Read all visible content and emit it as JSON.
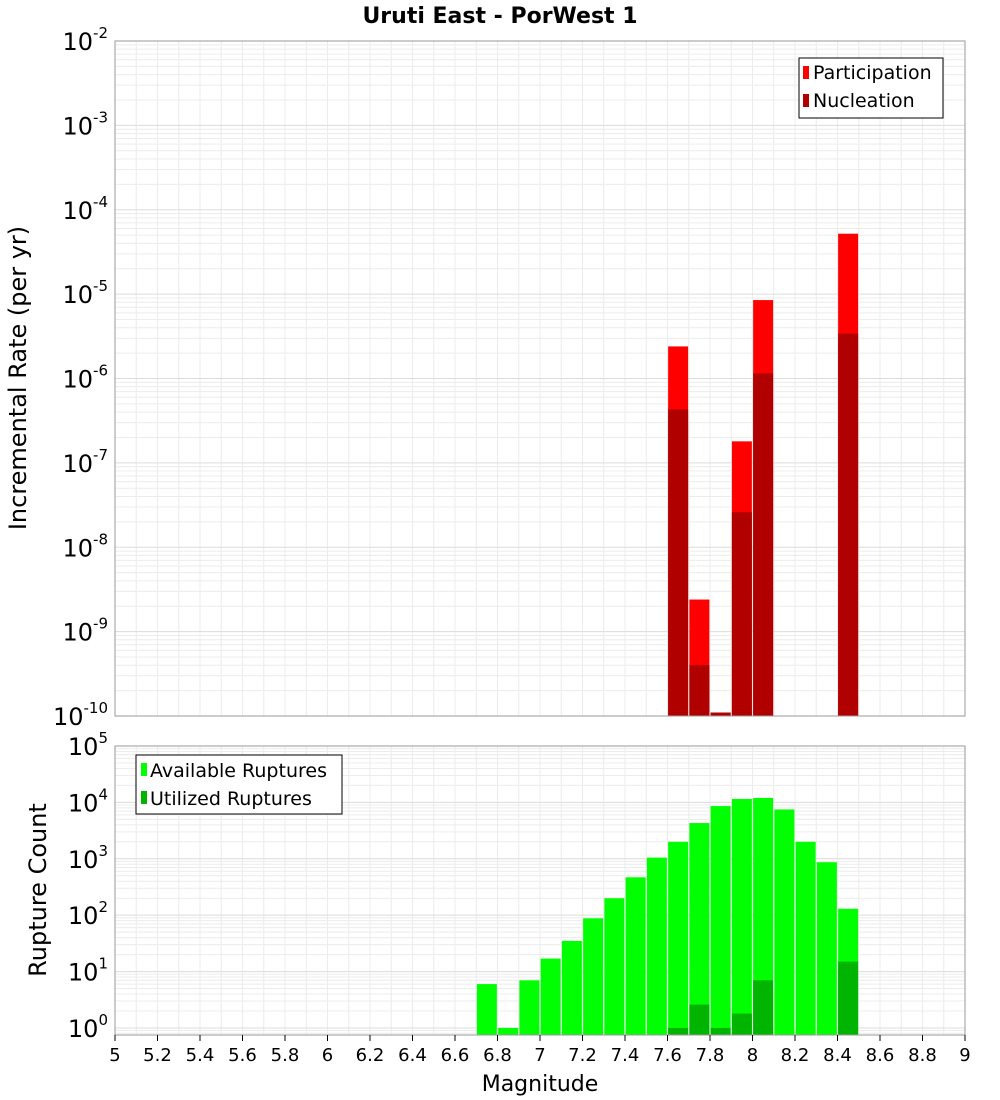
{
  "title": "Uruti East - PorWest 1",
  "chart_data": [
    {
      "type": "bar",
      "scale": "log",
      "ylabel": "Incremental Rate (per yr)",
      "xlabel": "",
      "xlim": [
        5,
        9
      ],
      "ylim": [
        1e-10,
        0.01
      ],
      "yticks": [
        {
          "base": "10",
          "exp": "-10",
          "value": 1e-10
        },
        {
          "base": "10",
          "exp": "-9",
          "value": 1e-09
        },
        {
          "base": "10",
          "exp": "-8",
          "value": 1e-08
        },
        {
          "base": "10",
          "exp": "-7",
          "value": 1e-07
        },
        {
          "base": "10",
          "exp": "-6",
          "value": 1e-06
        },
        {
          "base": "10",
          "exp": "-5",
          "value": 1e-05
        },
        {
          "base": "10",
          "exp": "-4",
          "value": 0.0001
        },
        {
          "base": "10",
          "exp": "-3",
          "value": 0.001
        },
        {
          "base": "10",
          "exp": "-2",
          "value": 0.01
        }
      ],
      "legend_position": "top-right",
      "series": [
        {
          "name": "Participation",
          "color": "#ff0000",
          "points": [
            {
              "x": 7.65,
              "y": 2.4e-06
            },
            {
              "x": 7.75,
              "y": 2.4e-09
            },
            {
              "x": 7.85,
              "y": 1.1e-10
            },
            {
              "x": 7.95,
              "y": 1.8e-07
            },
            {
              "x": 8.05,
              "y": 8.5e-06
            },
            {
              "x": 8.45,
              "y": 5.2e-05
            }
          ]
        },
        {
          "name": "Nucleation",
          "color": "#b00000",
          "points": [
            {
              "x": 7.65,
              "y": 4.3e-07
            },
            {
              "x": 7.75,
              "y": 4e-10
            },
            {
              "x": 7.85,
              "y": 1.1e-10
            },
            {
              "x": 7.95,
              "y": 2.6e-08
            },
            {
              "x": 8.05,
              "y": 1.15e-06
            },
            {
              "x": 8.45,
              "y": 3.4e-06
            }
          ]
        }
      ]
    },
    {
      "type": "bar",
      "scale": "log",
      "ylabel": "Rupture Count",
      "xlabel": "Magnitude",
      "xlim": [
        5,
        9
      ],
      "ylim": [
        0.75,
        100000.0
      ],
      "yticks": [
        {
          "base": "10",
          "exp": "0",
          "value": 1
        },
        {
          "base": "10",
          "exp": "1",
          "value": 10
        },
        {
          "base": "10",
          "exp": "2",
          "value": 100
        },
        {
          "base": "10",
          "exp": "3",
          "value": 1000
        },
        {
          "base": "10",
          "exp": "4",
          "value": 10000
        },
        {
          "base": "10",
          "exp": "5",
          "value": 100000
        }
      ],
      "xticks": [
        "5",
        "5.2",
        "5.4",
        "5.6",
        "5.8",
        "6",
        "6.2",
        "6.4",
        "6.6",
        "6.8",
        "7",
        "7.2",
        "7.4",
        "7.6",
        "7.8",
        "8",
        "8.2",
        "8.4",
        "8.6",
        "8.8",
        "9"
      ],
      "legend_position": "top-left",
      "series": [
        {
          "name": "Available Ruptures",
          "color": "#00ff00",
          "points": [
            {
              "x": 6.75,
              "y": 6
            },
            {
              "x": 6.85,
              "y": 1
            },
            {
              "x": 6.95,
              "y": 7
            },
            {
              "x": 7.05,
              "y": 17
            },
            {
              "x": 7.15,
              "y": 35
            },
            {
              "x": 7.25,
              "y": 88
            },
            {
              "x": 7.35,
              "y": 200
            },
            {
              "x": 7.45,
              "y": 470
            },
            {
              "x": 7.55,
              "y": 1050
            },
            {
              "x": 7.65,
              "y": 2000
            },
            {
              "x": 7.75,
              "y": 4300
            },
            {
              "x": 7.85,
              "y": 8600
            },
            {
              "x": 7.95,
              "y": 11500
            },
            {
              "x": 8.05,
              "y": 12000
            },
            {
              "x": 8.15,
              "y": 7500
            },
            {
              "x": 8.25,
              "y": 2000
            },
            {
              "x": 8.35,
              "y": 870
            },
            {
              "x": 8.45,
              "y": 130
            }
          ]
        },
        {
          "name": "Utilized Ruptures",
          "color": "#00b400",
          "points": [
            {
              "x": 7.65,
              "y": 1
            },
            {
              "x": 7.75,
              "y": 2.6
            },
            {
              "x": 7.85,
              "y": 1
            },
            {
              "x": 7.95,
              "y": 1.8
            },
            {
              "x": 8.05,
              "y": 7
            },
            {
              "x": 8.45,
              "y": 15
            }
          ]
        }
      ]
    }
  ]
}
